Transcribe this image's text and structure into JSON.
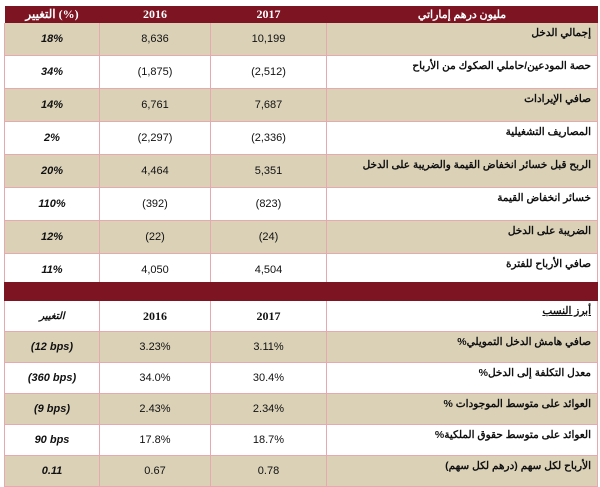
{
  "table1": {
    "headers": {
      "change": "التغيير (%)",
      "y2016": "2016",
      "y2017": "2017",
      "label": "مليون درهم إماراتي"
    },
    "rows": [
      {
        "label": "إجمالي الدخل",
        "y2017": "10,199",
        "y2016": "8,636",
        "change": "18%"
      },
      {
        "label": "حصة المودعين/حاملي الصكوك من الأرباح",
        "y2017": "(2,512)",
        "y2016": "(1,875)",
        "change": "34%"
      },
      {
        "label": "صافي الإيرادات",
        "y2017": "7,687",
        "y2016": "6,761",
        "change": "14%"
      },
      {
        "label": "المصاريف التشغيلية",
        "y2017": "(2,336)",
        "y2016": "(2,297)",
        "change": "2%"
      },
      {
        "label": "الربح قبل خسائر انخفاض القيمة والضريبة على الدخل",
        "y2017": "5,351",
        "y2016": "4,464",
        "change": "20%"
      },
      {
        "label": "خسائر انخفاض القيمة",
        "y2017": "(823)",
        "y2016": "(392)",
        "change": "110%"
      },
      {
        "label": "الضريبة على الدخل",
        "y2017": "(24)",
        "y2016": "(22)",
        "change": "12%"
      },
      {
        "label": "صافي الأرباح للفترة",
        "y2017": "4,504",
        "y2016": "4,050",
        "change": "11%"
      }
    ]
  },
  "table2": {
    "headers": {
      "change": "التغيير",
      "y2016": "2016",
      "y2017": "2017",
      "label": "أبرز النسب"
    },
    "rows": [
      {
        "label": "صافي هامش الدخل التمويلي%",
        "y2017": "3.11%",
        "y2016": "3.23%",
        "change": "(12 bps)"
      },
      {
        "label": "معدل التكلفة إلى الدخل%",
        "y2017": "30.4%",
        "y2016": "34.0%",
        "change": "(360 bps)"
      },
      {
        "label": "العوائد على متوسط الموجودات %",
        "y2017": "2.34%",
        "y2016": "2.43%",
        "change": "(9 bps)"
      },
      {
        "label": "العوائد على متوسط حقوق الملكية%",
        "y2017": "18.7%",
        "y2016": "17.8%",
        "change": "90 bps"
      },
      {
        "label": "الأرباح لكل سهم (درهم لكل سهم)",
        "y2017": "0.78",
        "y2016": "0.67",
        "change": "0.11"
      }
    ]
  },
  "colors": {
    "header": "#7d1422",
    "stripe": "#dad1b7",
    "border": "#e7a9b0"
  }
}
